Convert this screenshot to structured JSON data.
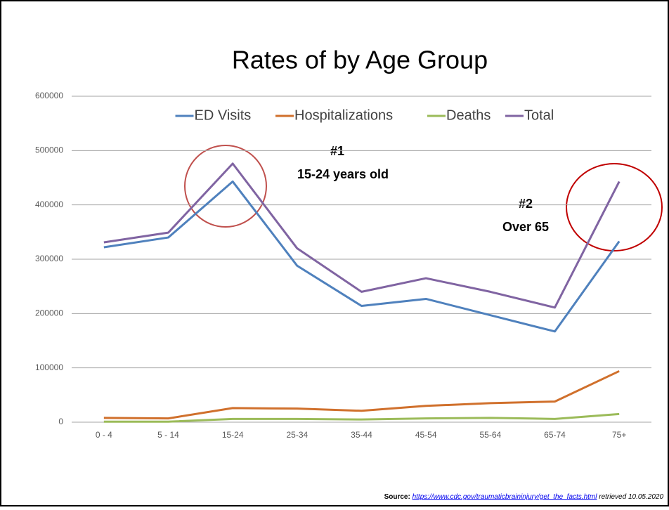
{
  "chart_data": {
    "type": "line",
    "title": "Rates of by Age Group",
    "categories": [
      "0 - 4",
      "5 - 14",
      "15-24",
      "25-34",
      "35-44",
      "45-54",
      "55-64",
      "65-74",
      "75+"
    ],
    "series": [
      {
        "name": "ED Visits",
        "color": "#4f81bd",
        "values": [
          322000,
          340000,
          443000,
          288000,
          214000,
          227000,
          197000,
          167000,
          333000
        ]
      },
      {
        "name": "Hospitalizations",
        "color": "#d0702c",
        "values": [
          8000,
          7000,
          26000,
          25000,
          21000,
          30000,
          35000,
          38000,
          94000
        ]
      },
      {
        "name": "Deaths",
        "color": "#9bbb59",
        "values": [
          1000,
          1000,
          6000,
          6000,
          5000,
          7000,
          8000,
          6000,
          15000
        ]
      },
      {
        "name": "Total",
        "color": "#8064a2",
        "values": [
          331000,
          349000,
          476000,
          320000,
          240000,
          265000,
          240000,
          211000,
          443000
        ]
      }
    ],
    "ylim": [
      0,
      600000
    ],
    "yticks": [
      0,
      100000,
      200000,
      300000,
      400000,
      500000,
      600000
    ],
    "grid": true,
    "legend": "top",
    "annotations": [
      "#1",
      "15-24 years old",
      "#2",
      "Over 65"
    ],
    "source": {
      "label": "Source:",
      "url": "https://www.cdc.gov/traumaticbraininjury/get_the_facts.html",
      "note": "retrieved 10.05.2020"
    }
  }
}
